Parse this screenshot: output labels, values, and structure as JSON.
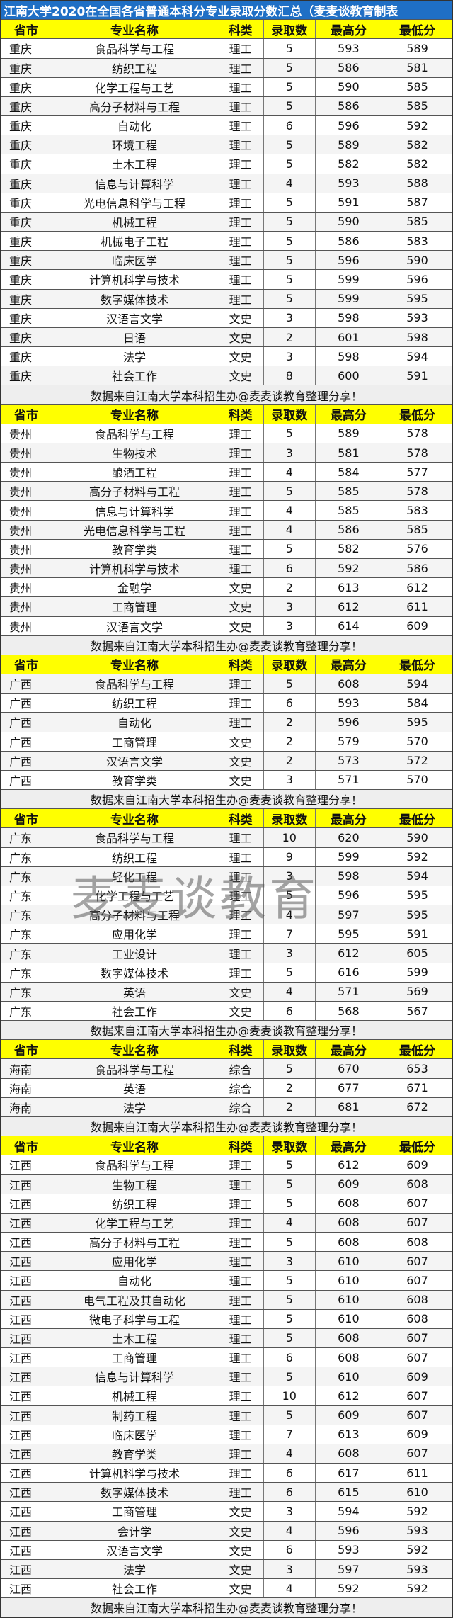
{
  "title": "江南大学2020在全国各省普通本科分专业录取分数汇总（麦麦谈教育制表",
  "header": [
    "省市",
    "专业名称",
    "科类",
    "录取数",
    "最高分",
    "最低分"
  ],
  "footer": "数据来自江南大学本科招生办@麦麦谈教育整理分享！",
  "watermark": "麦麦谈教育",
  "sections": [
    {
      "rows": [
        [
          "重庆",
          "食品科学与工程",
          "理工",
          5,
          593,
          589
        ],
        [
          "重庆",
          "纺织工程",
          "理工",
          5,
          586,
          581
        ],
        [
          "重庆",
          "化学工程与工艺",
          "理工",
          5,
          590,
          585
        ],
        [
          "重庆",
          "高分子材料与工程",
          "理工",
          5,
          586,
          585
        ],
        [
          "重庆",
          "自动化",
          "理工",
          6,
          596,
          592
        ],
        [
          "重庆",
          "环境工程",
          "理工",
          5,
          589,
          582
        ],
        [
          "重庆",
          "土木工程",
          "理工",
          5,
          582,
          582
        ],
        [
          "重庆",
          "信息与计算科学",
          "理工",
          4,
          593,
          588
        ],
        [
          "重庆",
          "光电信息科学与工程",
          "理工",
          5,
          591,
          587
        ],
        [
          "重庆",
          "机械工程",
          "理工",
          5,
          590,
          585
        ],
        [
          "重庆",
          "机械电子工程",
          "理工",
          5,
          586,
          583
        ],
        [
          "重庆",
          "临床医学",
          "理工",
          5,
          596,
          590
        ],
        [
          "重庆",
          "计算机科学与技术",
          "理工",
          5,
          599,
          596
        ],
        [
          "重庆",
          "数字媒体技术",
          "理工",
          5,
          599,
          595
        ],
        [
          "重庆",
          "汉语言文学",
          "文史",
          3,
          598,
          593
        ],
        [
          "重庆",
          "日语",
          "文史",
          2,
          601,
          598
        ],
        [
          "重庆",
          "法学",
          "文史",
          3,
          598,
          594
        ],
        [
          "重庆",
          "社会工作",
          "文史",
          8,
          600,
          591
        ]
      ]
    },
    {
      "rows": [
        [
          "贵州",
          "食品科学与工程",
          "理工",
          5,
          589,
          578
        ],
        [
          "贵州",
          "生物技术",
          "理工",
          3,
          581,
          578
        ],
        [
          "贵州",
          "酿酒工程",
          "理工",
          4,
          584,
          577
        ],
        [
          "贵州",
          "高分子材料与工程",
          "理工",
          5,
          585,
          578
        ],
        [
          "贵州",
          "信息与计算科学",
          "理工",
          4,
          585,
          583
        ],
        [
          "贵州",
          "光电信息科学与工程",
          "理工",
          4,
          586,
          585
        ],
        [
          "贵州",
          "教育学类",
          "理工",
          5,
          582,
          576
        ],
        [
          "贵州",
          "计算机科学与技术",
          "理工",
          6,
          592,
          586
        ],
        [
          "贵州",
          "金融学",
          "文史",
          2,
          613,
          612
        ],
        [
          "贵州",
          "工商管理",
          "文史",
          3,
          612,
          611
        ],
        [
          "贵州",
          "汉语言文学",
          "文史",
          3,
          614,
          609
        ]
      ]
    },
    {
      "rows": [
        [
          "广西",
          "食品科学与工程",
          "理工",
          5,
          608,
          594
        ],
        [
          "广西",
          "纺织工程",
          "理工",
          6,
          593,
          584
        ],
        [
          "广西",
          "自动化",
          "理工",
          2,
          596,
          595
        ],
        [
          "广西",
          "工商管理",
          "文史",
          2,
          579,
          570
        ],
        [
          "广西",
          "汉语言文学",
          "文史",
          2,
          573,
          572
        ],
        [
          "广西",
          "教育学类",
          "文史",
          3,
          571,
          570
        ]
      ]
    },
    {
      "rows": [
        [
          "广东",
          "食品科学与工程",
          "理工",
          10,
          620,
          590
        ],
        [
          "广东",
          "纺织工程",
          "理工",
          9,
          599,
          592
        ],
        [
          "广东",
          "轻化工程",
          "理工",
          3,
          598,
          594
        ],
        [
          "广东",
          "化学工程与工艺",
          "理工",
          5,
          596,
          595
        ],
        [
          "广东",
          "高分子材料与工程",
          "理工",
          4,
          597,
          595
        ],
        [
          "广东",
          "应用化学",
          "理工",
          7,
          595,
          591
        ],
        [
          "广东",
          "工业设计",
          "理工",
          3,
          612,
          605
        ],
        [
          "广东",
          "数字媒体技术",
          "理工",
          5,
          616,
          599
        ],
        [
          "广东",
          "英语",
          "文史",
          4,
          571,
          569
        ],
        [
          "广东",
          "社会工作",
          "文史",
          6,
          568,
          567
        ]
      ]
    },
    {
      "rows": [
        [
          "海南",
          "食品科学与工程",
          "综合",
          5,
          670,
          653
        ],
        [
          "海南",
          "英语",
          "综合",
          2,
          677,
          671
        ],
        [
          "海南",
          "法学",
          "综合",
          2,
          681,
          672
        ]
      ]
    },
    {
      "rows": [
        [
          "江西",
          "食品科学与工程",
          "理工",
          5,
          612,
          609
        ],
        [
          "江西",
          "生物工程",
          "理工",
          5,
          609,
          608
        ],
        [
          "江西",
          "纺织工程",
          "理工",
          5,
          608,
          607
        ],
        [
          "江西",
          "化学工程与工艺",
          "理工",
          4,
          608,
          607
        ],
        [
          "江西",
          "高分子材料与工程",
          "理工",
          5,
          608,
          608
        ],
        [
          "江西",
          "应用化学",
          "理工",
          3,
          610,
          607
        ],
        [
          "江西",
          "自动化",
          "理工",
          5,
          610,
          607
        ],
        [
          "江西",
          "电气工程及其自动化",
          "理工",
          5,
          610,
          608
        ],
        [
          "江西",
          "微电子科学与工程",
          "理工",
          5,
          610,
          608
        ],
        [
          "江西",
          "土木工程",
          "理工",
          5,
          608,
          607
        ],
        [
          "江西",
          "工商管理",
          "理工",
          6,
          608,
          607
        ],
        [
          "江西",
          "信息与计算科学",
          "理工",
          5,
          610,
          609
        ],
        [
          "江西",
          "机械工程",
          "理工",
          10,
          612,
          607
        ],
        [
          "江西",
          "制药工程",
          "理工",
          5,
          609,
          607
        ],
        [
          "江西",
          "临床医学",
          "理工",
          7,
          613,
          609
        ],
        [
          "江西",
          "教育学类",
          "理工",
          4,
          608,
          607
        ],
        [
          "江西",
          "计算机科学与技术",
          "理工",
          6,
          617,
          611
        ],
        [
          "江西",
          "数字媒体技术",
          "理工",
          6,
          615,
          610
        ],
        [
          "江西",
          "工商管理",
          "文史",
          3,
          594,
          592
        ],
        [
          "江西",
          "会计学",
          "文史",
          4,
          596,
          593
        ],
        [
          "江西",
          "汉语言文学",
          "文史",
          6,
          593,
          592
        ],
        [
          "江西",
          "法学",
          "文史",
          3,
          597,
          593
        ],
        [
          "江西",
          "社会工作",
          "文史",
          4,
          592,
          592
        ]
      ]
    }
  ]
}
